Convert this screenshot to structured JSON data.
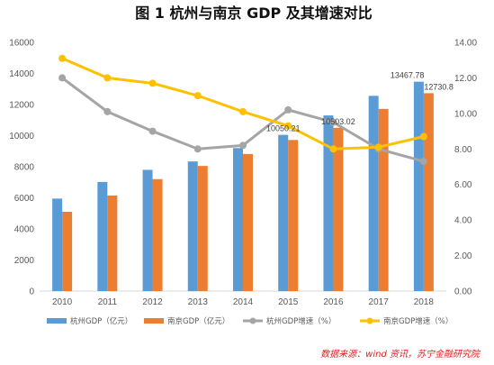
{
  "chart_data": {
    "type": "bar",
    "title": "图 1   杭州与南京 GDP 及其增速对比",
    "categories": [
      "2010",
      "2011",
      "2012",
      "2013",
      "2014",
      "2015",
      "2016",
      "2017",
      "2018"
    ],
    "series": [
      {
        "name": "杭州GDP（亿元）",
        "type": "bar",
        "axis": "left",
        "color": "#5b9bd5",
        "values": [
          5950,
          7020,
          7800,
          8340,
          9200,
          10050.21,
          11300,
          12560,
          13467.78
        ]
      },
      {
        "name": "南京GDP（亿元）",
        "type": "bar",
        "axis": "left",
        "color": "#ed7d31",
        "values": [
          5100,
          6150,
          7200,
          8050,
          8820,
          9720,
          10503.02,
          11720,
          12730.8
        ]
      },
      {
        "name": "杭州GDP增速（%）",
        "type": "line",
        "axis": "right",
        "color": "#a5a5a5",
        "values": [
          12.0,
          10.1,
          9.0,
          8.0,
          8.2,
          10.2,
          9.5,
          8.0,
          7.3
        ]
      },
      {
        "name": "南京GDP增速（%）",
        "type": "line",
        "axis": "right",
        "color": "#ffc000",
        "values": [
          13.1,
          12.0,
          11.7,
          11.0,
          10.1,
          9.3,
          8.0,
          8.1,
          8.7
        ]
      }
    ],
    "data_labels": [
      {
        "series": 0,
        "index": 5,
        "text": "10050.21"
      },
      {
        "series": 1,
        "index": 6,
        "text": "10503.02"
      },
      {
        "series": 0,
        "index": 8,
        "text": "13467.78"
      },
      {
        "series": 1,
        "index": 8,
        "text": "12730.8"
      }
    ],
    "ylim": [
      0,
      16000
    ],
    "yticks": [
      "0",
      "2000",
      "4000",
      "6000",
      "8000",
      "10000",
      "12000",
      "14000",
      "16000"
    ],
    "y2lim": [
      0,
      14
    ],
    "y2ticks": [
      "0.00",
      "2.00",
      "4.00",
      "6.00",
      "8.00",
      "10.00",
      "12.00",
      "14.00"
    ],
    "grid": false,
    "legend_position": "bottom",
    "source": "数据来源：wind 资讯，苏宁金融研究院"
  }
}
